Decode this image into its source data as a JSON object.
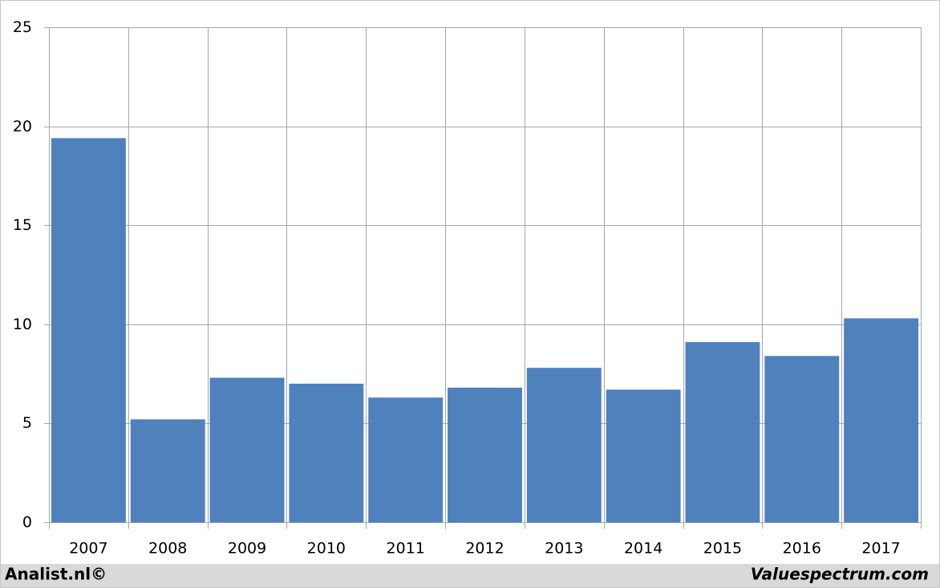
{
  "chart_data": {
    "type": "bar",
    "categories": [
      "2007",
      "2008",
      "2009",
      "2010",
      "2011",
      "2012",
      "2013",
      "2014",
      "2015",
      "2016",
      "2017"
    ],
    "values": [
      19.4,
      5.2,
      7.3,
      7.0,
      6.3,
      6.8,
      7.8,
      6.7,
      9.1,
      8.4,
      10.3
    ],
    "color": "#4f81bd",
    "ylim": [
      0,
      25
    ],
    "yticks": [
      0,
      5,
      10,
      15,
      20,
      25
    ],
    "grid": true
  },
  "footer": {
    "left": "Analist.nl©",
    "right": "Valuespectrum.com"
  }
}
